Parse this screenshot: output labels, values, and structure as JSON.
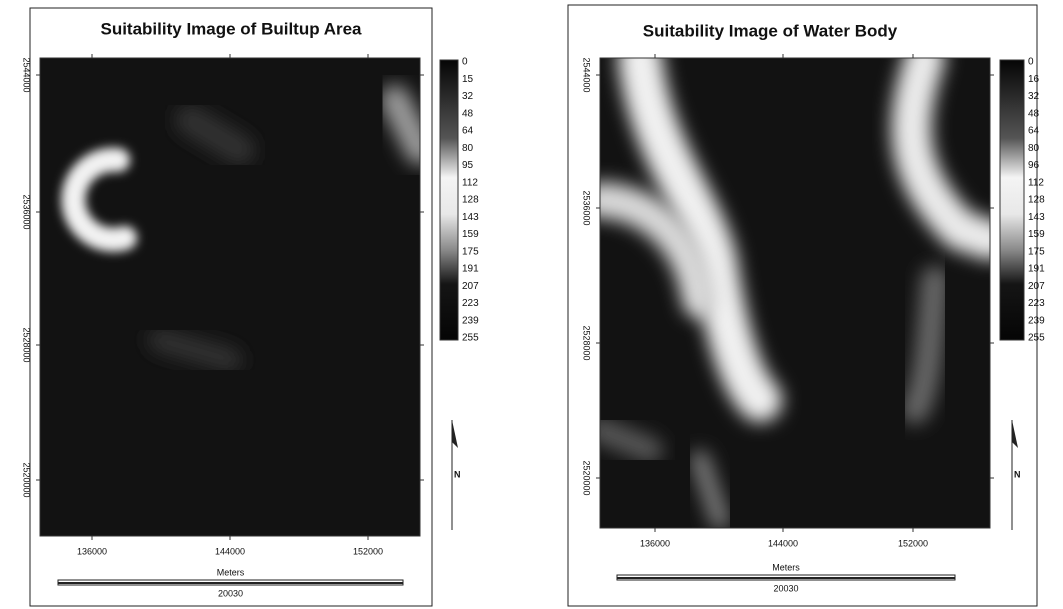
{
  "panels": [
    {
      "title": "Suitability Image of Builtup Area",
      "y_ticks": [
        2544000,
        2536000,
        2528000,
        2520000
      ],
      "x_ticks": [
        136000,
        144000,
        152000
      ],
      "legend": [
        0,
        15,
        32,
        48,
        64,
        80,
        95,
        112,
        128,
        143,
        159,
        175,
        191,
        207,
        223,
        239,
        255
      ],
      "north": "N",
      "scale_unit": "Meters",
      "scale_length": "20030"
    },
    {
      "title": "Suitability Image of Water Body",
      "y_ticks": [
        2544000,
        2536000,
        2528000,
        2520000
      ],
      "x_ticks": [
        136000,
        144000,
        152000
      ],
      "legend": [
        0,
        16,
        32,
        48,
        64,
        80,
        96,
        112,
        128,
        143,
        159,
        175,
        191,
        207,
        223,
        239,
        255
      ],
      "north": "N",
      "scale_unit": "Meters",
      "scale_length": "20030"
    }
  ]
}
